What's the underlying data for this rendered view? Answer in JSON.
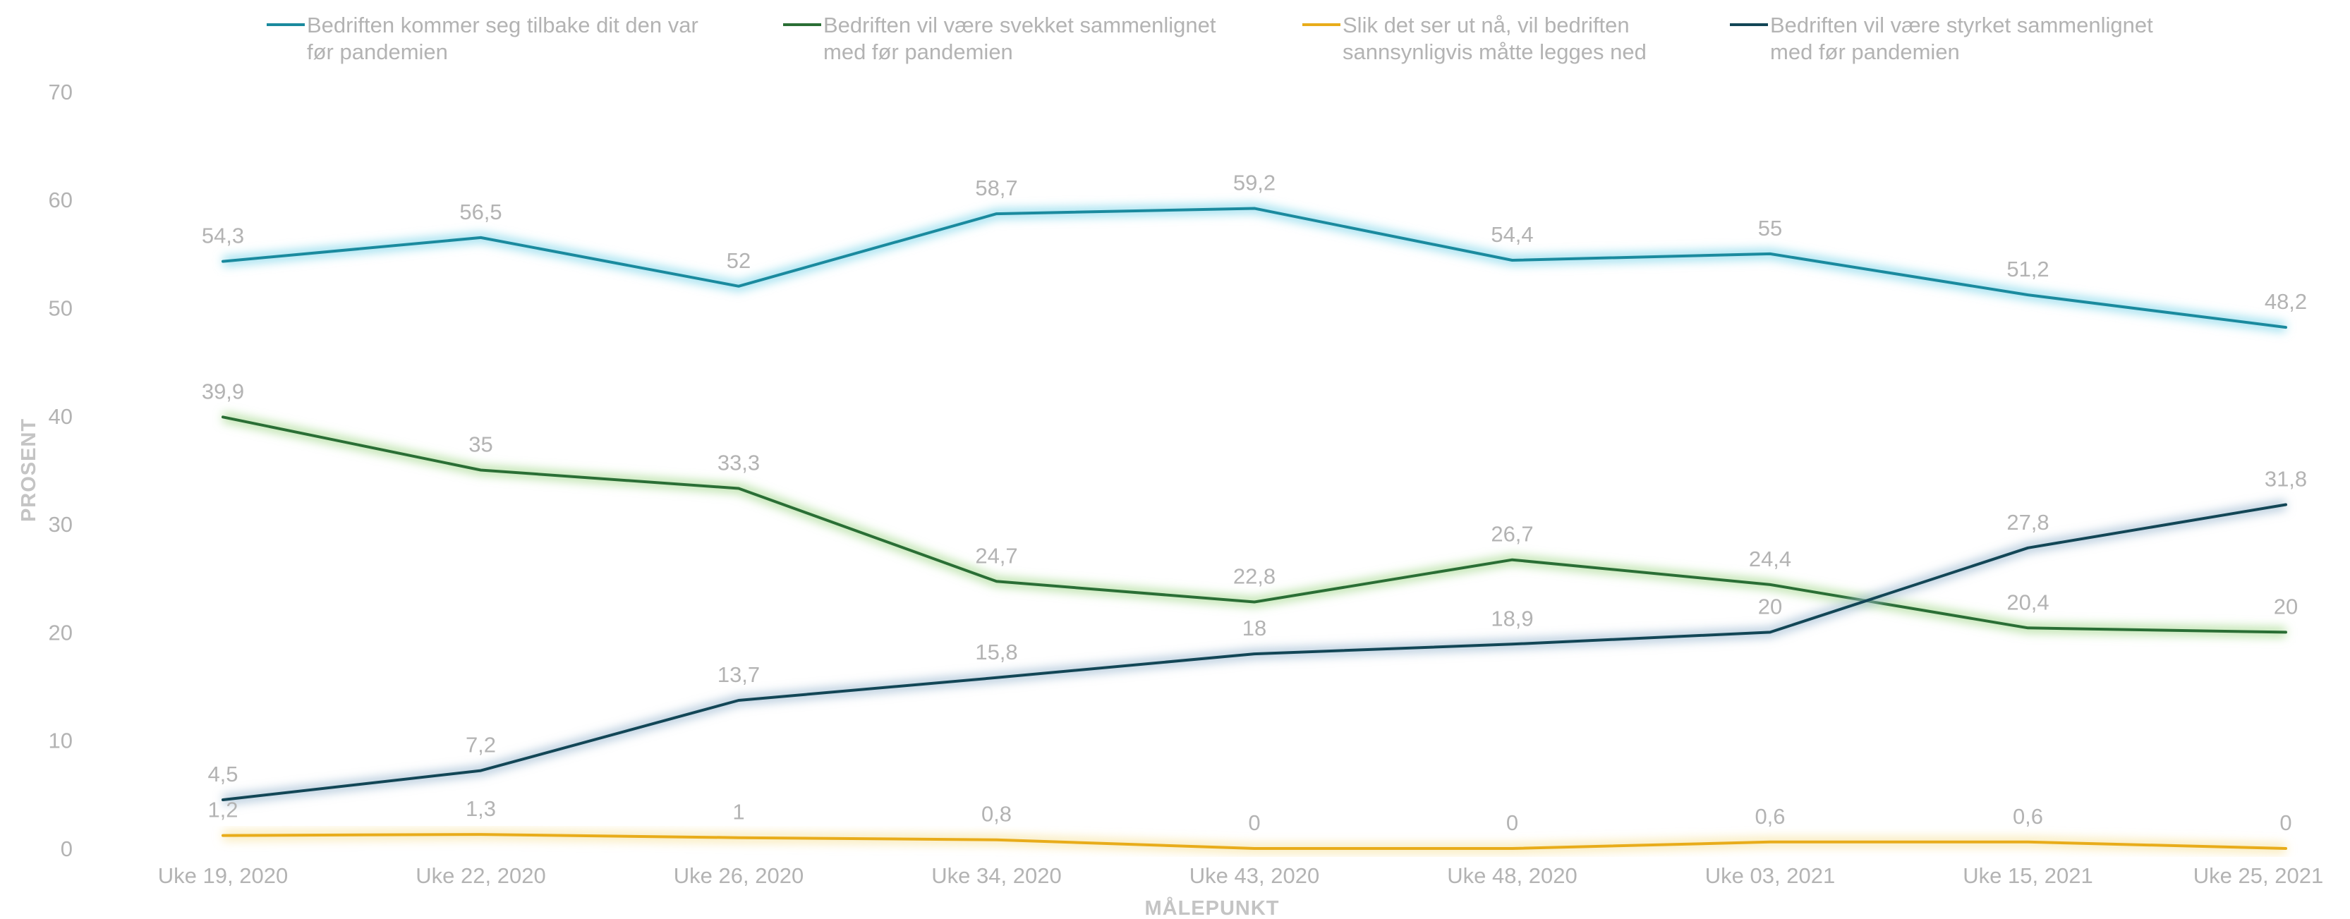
{
  "chart_data": {
    "type": "line",
    "title": "",
    "xlabel": "MÅLEPUNKT",
    "ylabel": "PROSENT",
    "ylim": [
      0,
      70
    ],
    "yticks": [
      0,
      10,
      20,
      30,
      40,
      50,
      60,
      70
    ],
    "grid": false,
    "legend_position": "top",
    "categories": [
      "Uke 19, 2020",
      "Uke 22, 2020",
      "Uke 26, 2020",
      "Uke 34, 2020",
      "Uke 43, 2020",
      "Uke 48, 2020",
      "Uke 03, 2021",
      "Uke 15, 2021",
      "Uke 25, 2021"
    ],
    "series": [
      {
        "name": "Bedriften kommer seg tilbake dit den var før pandemien",
        "legend_lines": [
          "Bedriften kommer seg tilbake dit den var",
          "før pandemien"
        ],
        "color": "#1a8a9e",
        "glow": "#7fd6ea",
        "values": [
          54.3,
          56.5,
          52,
          58.7,
          59.2,
          54.4,
          55,
          51.2,
          48.2
        ],
        "labels": [
          "54,3",
          "56,5",
          "52",
          "58,7",
          "59,2",
          "54,4",
          "55",
          "51,2",
          "48,2"
        ]
      },
      {
        "name": "Bedriften vil være svekket sammenlignet med før pandemien",
        "legend_lines": [
          "Bedriften vil være svekket sammenlignet",
          "med før pandemien"
        ],
        "color": "#2a6e35",
        "glow": "#a6d98f",
        "values": [
          39.9,
          35,
          33.3,
          24.7,
          22.8,
          26.7,
          24.4,
          20.4,
          20
        ],
        "labels": [
          "39,9",
          "35",
          "33,3",
          "24,7",
          "22,8",
          "26,7",
          "24,4",
          "20,4",
          "20"
        ]
      },
      {
        "name": "Slik det ser ut nå, vil bedriften sannsynligvis måtte legges ned",
        "legend_lines": [
          "Slik det ser ut nå, vil bedriften",
          "sannsynligvis måtte legges ned"
        ],
        "color": "#e8ac1a",
        "glow": "#f7e3a0",
        "values": [
          1.2,
          1.3,
          1,
          0.8,
          0,
          0,
          0.6,
          0.6,
          0
        ],
        "labels": [
          "1,2",
          "1,3",
          "1",
          "0,8",
          "0",
          "0",
          "0,6",
          "0,6",
          "0"
        ]
      },
      {
        "name": "Bedriften vil være styrket sammenlignet med før pandemien",
        "legend_lines": [
          "Bedriften vil være styrket sammenlignet",
          "med før pandemien"
        ],
        "color": "#124656",
        "glow": "#9dbad0",
        "values": [
          4.5,
          7.2,
          13.7,
          15.8,
          18,
          18.9,
          20,
          27.8,
          31.8
        ],
        "labels": [
          "4,5",
          "7,2",
          "13,7",
          "15,8",
          "18",
          "18,9",
          "20",
          "27,8",
          "31,8"
        ]
      }
    ]
  }
}
